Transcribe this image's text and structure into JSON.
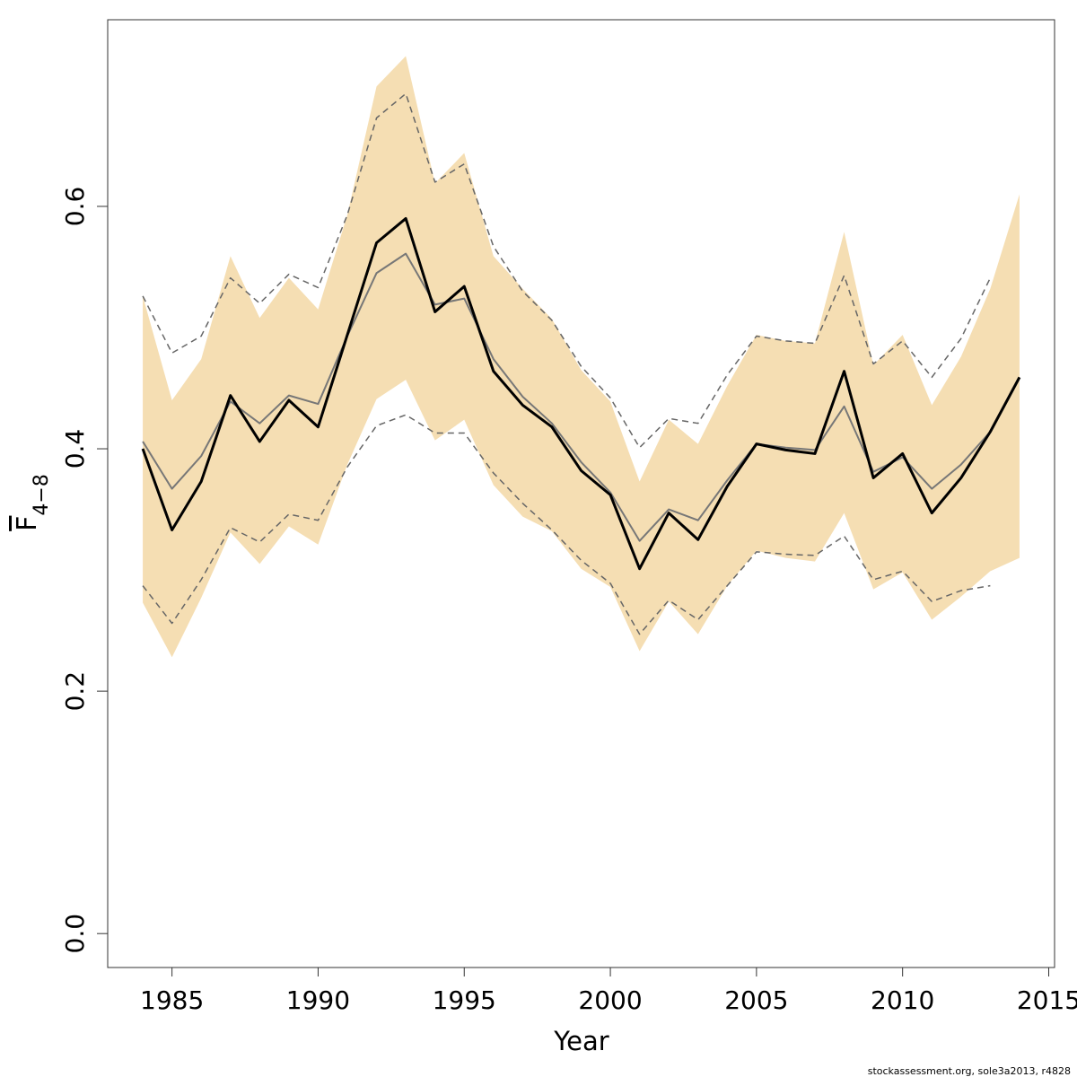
{
  "chart_data": {
    "type": "line",
    "xlabel": "Year",
    "ylabel": "F",
    "ylabel_subscript": "4−8",
    "footer": "stockassessment.org, sole3a2013, r4828",
    "x": [
      1984,
      1985,
      1986,
      1987,
      1988,
      1989,
      1990,
      1991,
      1992,
      1993,
      1994,
      1995,
      1996,
      1997,
      1998,
      1999,
      2000,
      2001,
      2002,
      2003,
      2004,
      2005,
      2006,
      2007,
      2008,
      2009,
      2010,
      2011,
      2012,
      2013,
      2014
    ],
    "xlim": [
      1982.8,
      2015.2
    ],
    "xticks": [
      1985,
      1990,
      1995,
      2000,
      2005,
      2010,
      2015
    ],
    "ylim": [
      -0.028,
      0.754
    ],
    "yticks": [
      {
        "value": 0,
        "label": "0.0"
      },
      0.2,
      0.4,
      0.6
    ],
    "band": {
      "color": "#f5deb3",
      "upper": [
        0.526,
        0.44,
        0.474,
        0.559,
        0.508,
        0.541,
        0.515,
        0.593,
        0.699,
        0.724,
        0.619,
        0.644,
        0.559,
        0.532,
        0.507,
        0.465,
        0.439,
        0.373,
        0.424,
        0.404,
        0.452,
        0.494,
        0.489,
        0.487,
        0.579,
        0.469,
        0.494,
        0.436,
        0.476,
        0.532,
        0.61
      ],
      "lower": [
        0.273,
        0.228,
        0.277,
        0.331,
        0.305,
        0.336,
        0.321,
        0.387,
        0.441,
        0.457,
        0.407,
        0.424,
        0.37,
        0.344,
        0.332,
        0.301,
        0.286,
        0.233,
        0.274,
        0.247,
        0.287,
        0.316,
        0.31,
        0.307,
        0.347,
        0.284,
        0.298,
        0.259,
        0.278,
        0.299,
        0.31
      ]
    },
    "series": [
      {
        "color": "#666666",
        "width": 1.5,
        "dashed": true,
        "values": [
          0.526,
          0.479,
          0.493,
          0.541,
          0.52,
          0.544,
          0.533,
          0.593,
          0.673,
          0.693,
          0.62,
          0.635,
          0.567,
          0.53,
          0.506,
          0.468,
          0.442,
          0.401,
          0.425,
          0.421,
          0.461,
          0.493,
          0.489,
          0.487,
          0.543,
          0.47,
          0.489,
          0.459,
          0.491,
          0.541,
          null
        ]
      },
      {
        "color": "#666666",
        "width": 1.5,
        "dashed": true,
        "values": [
          0.287,
          0.256,
          0.292,
          0.335,
          0.323,
          0.346,
          0.341,
          0.385,
          0.419,
          0.428,
          0.413,
          0.413,
          0.38,
          0.355,
          0.333,
          0.308,
          0.289,
          0.247,
          0.275,
          0.259,
          0.287,
          0.315,
          0.313,
          0.312,
          0.328,
          0.292,
          0.299,
          0.274,
          0.283,
          0.287,
          null
        ]
      },
      {
        "color": "#777777",
        "width": 2,
        "dashed": false,
        "values": [
          0.406,
          0.367,
          0.394,
          0.439,
          0.421,
          0.444,
          0.437,
          0.493,
          0.545,
          0.561,
          0.519,
          0.524,
          0.474,
          0.443,
          0.421,
          0.389,
          0.364,
          0.324,
          0.35,
          0.341,
          0.374,
          0.404,
          0.401,
          0.399,
          0.435,
          0.381,
          0.393,
          0.367,
          0.387,
          0.414,
          null
        ]
      },
      {
        "color": "#000000",
        "width": 3,
        "dashed": false,
        "values": [
          0.4,
          0.333,
          0.373,
          0.444,
          0.406,
          0.44,
          0.418,
          0.494,
          0.57,
          0.59,
          0.513,
          0.534,
          0.464,
          0.436,
          0.418,
          0.382,
          0.362,
          0.301,
          0.347,
          0.325,
          0.369,
          0.404,
          0.399,
          0.396,
          0.464,
          0.376,
          0.396,
          0.347,
          0.376,
          0.414,
          0.459
        ]
      }
    ]
  }
}
